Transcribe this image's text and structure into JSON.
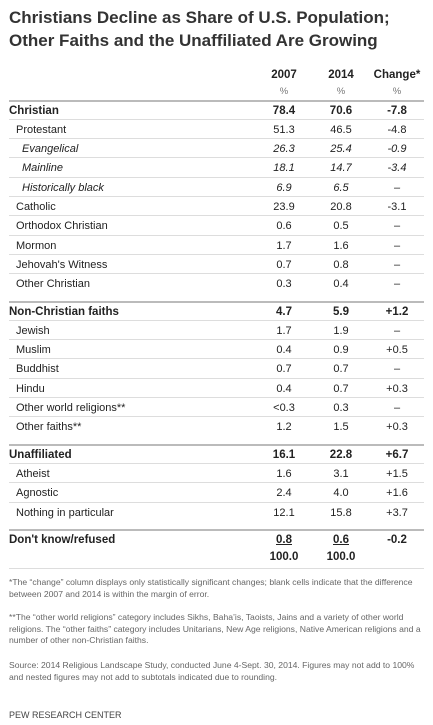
{
  "header": {
    "title": "Christians Decline as Share of U.S. Population; Other Faiths and the Unaffiliated Are Growing"
  },
  "table": {
    "columns": [
      "2007",
      "2014",
      "Change*"
    ],
    "units": [
      "%",
      "%",
      "%"
    ],
    "rows": [
      [
        "Christian",
        "78.4",
        "70.6",
        "-7.8"
      ],
      [
        "Protestant",
        "51.3",
        "46.5",
        "-4.8"
      ],
      [
        "Evangelical",
        "26.3",
        "25.4",
        "-0.9"
      ],
      [
        "Mainline",
        "18.1",
        "14.7",
        "-3.4"
      ],
      [
        "Historically black",
        "6.9",
        "6.5",
        "–"
      ],
      [
        "Catholic",
        "23.9",
        "20.8",
        "-3.1"
      ],
      [
        "Orthodox Christian",
        "0.6",
        "0.5",
        "–"
      ],
      [
        "Mormon",
        "1.7",
        "1.6",
        "–"
      ],
      [
        "Jehovah's Witness",
        "0.7",
        "0.8",
        "–"
      ],
      [
        "Other Christian",
        "0.3",
        "0.4",
        "–"
      ],
      [
        "Non-Christian faiths",
        "4.7",
        "5.9",
        "+1.2"
      ],
      [
        "Jewish",
        "1.7",
        "1.9",
        "–"
      ],
      [
        "Muslim",
        "0.4",
        "0.9",
        "+0.5"
      ],
      [
        "Buddhist",
        "0.7",
        "0.7",
        "–"
      ],
      [
        "Hindu",
        "0.4",
        "0.7",
        "+0.3"
      ],
      [
        "Other world religions**",
        "<0.3",
        "0.3",
        "–"
      ],
      [
        "Other faiths**",
        "1.2",
        "1.5",
        "+0.3"
      ],
      [
        "Unaffiliated",
        "16.1",
        "22.8",
        "+6.7"
      ],
      [
        "Atheist",
        "1.6",
        "3.1",
        "+1.5"
      ],
      [
        "Agnostic",
        "2.4",
        "4.0",
        "+1.6"
      ],
      [
        "Nothing in particular",
        "12.1",
        "15.8",
        "+3.7"
      ],
      [
        "Don't know/refused",
        "0.8",
        "0.6",
        "-0.2"
      ]
    ],
    "totals": [
      "100.0",
      "100.0"
    ]
  },
  "notes": [
    "*The “change” column displays only statistically significant changes; blank cells indicate that the difference between 2007 and 2014 is within the margin of error.",
    "**The “other world religions” category includes Sikhs, Baha’is, Taoists, Jains and a variety of other world religions. The “other faiths” category includes Unitarians, New Age religions, Native American religions and a number of other non-Christian faiths."
  ],
  "source": "Source: 2014 Religious Landscape Study, conducted June 4-Sept. 30, 2014. Figures may not add to 100% and nested figures may not add to subtotals indicated due to rounding.",
  "footer": "PEW RESEARCH CENTER"
}
